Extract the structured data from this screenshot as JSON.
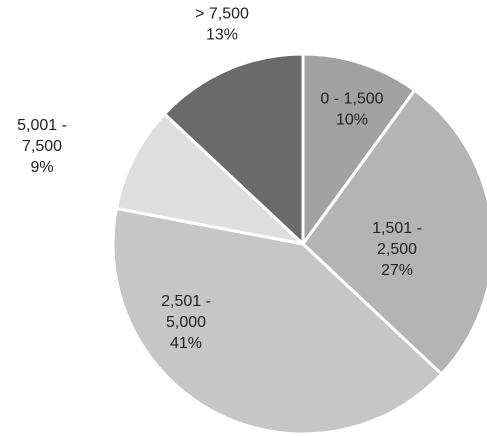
{
  "chart_data": {
    "type": "pie",
    "start_angle_deg": 0,
    "direction": "clockwise",
    "slices": [
      {
        "label_lines": [
          "0 - 1,500"
        ],
        "pct_text": "10%",
        "value": 10,
        "color": "#a2a2a2"
      },
      {
        "label_lines": [
          "1,501 -",
          "2,500"
        ],
        "pct_text": "27%",
        "value": 27,
        "color": "#b4b4b4"
      },
      {
        "label_lines": [
          "2,501 -",
          "5,000"
        ],
        "pct_text": "41%",
        "value": 41,
        "color": "#c6c6c6"
      },
      {
        "label_lines": [
          "5,001 -",
          "7,500"
        ],
        "pct_text": "9%",
        "value": 9,
        "color": "#dedede"
      },
      {
        "label_lines": [
          "> 7,500"
        ],
        "pct_text": "13%",
        "value": 13,
        "color": "#6a6a6a"
      }
    ]
  }
}
